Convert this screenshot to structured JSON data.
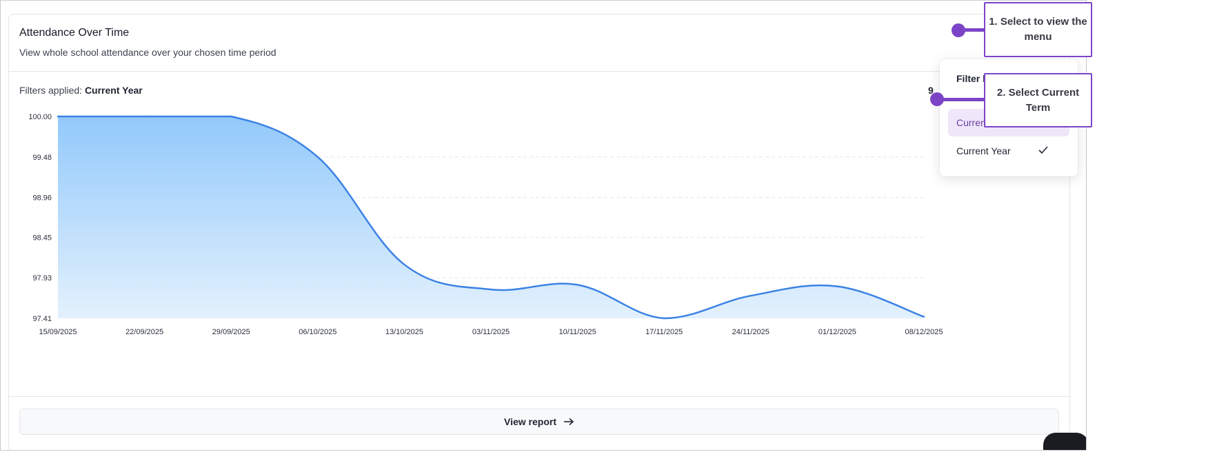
{
  "card": {
    "title": "Attendance Over Time",
    "subtitle": "View whole school attendance over your chosen time period",
    "filters_label": "Filters applied:",
    "filters_value": "Current Year",
    "overflow_digit": "9",
    "view_report_label": "View report"
  },
  "dropdown": {
    "header": "Filter by",
    "items": [
      {
        "label": "Current Term",
        "highlighted": true,
        "checked": false
      },
      {
        "label": "Current Year",
        "highlighted": false,
        "checked": true
      }
    ]
  },
  "callouts": {
    "step1": "1. Select to view the menu",
    "step2": "2. Select Current Term"
  },
  "colors": {
    "accent_purple": "#7b44c7",
    "line_blue": "#3b82e4",
    "area_top": "#93c9fb",
    "area_bottom": "#e3f1fd",
    "menu_highlight": "#efe6fa"
  },
  "icons": {
    "filter_button": "filter-list-icon",
    "view_report": "arrow-right-icon",
    "checked_item": "check-icon"
  },
  "chart_data": {
    "type": "area",
    "title": "",
    "xlabel": "",
    "ylabel": "",
    "ylim": [
      97.41,
      100.0
    ],
    "y_ticks": [
      "100.00",
      "99.48",
      "98.96",
      "98.45",
      "97.93",
      "97.41"
    ],
    "y_tick_values": [
      100.0,
      99.48,
      98.96,
      98.45,
      97.93,
      97.41
    ],
    "categories": [
      "15/09/2025",
      "22/09/2025",
      "29/09/2025",
      "06/10/2025",
      "13/10/2025",
      "03/11/2025",
      "10/11/2025",
      "17/11/2025",
      "24/11/2025",
      "01/12/2025",
      "08/12/2025"
    ],
    "values": [
      100.0,
      100.0,
      100.0,
      99.48,
      98.1,
      97.78,
      97.84,
      97.41,
      97.7,
      97.82,
      97.43
    ],
    "grid": true,
    "legend": "none"
  }
}
